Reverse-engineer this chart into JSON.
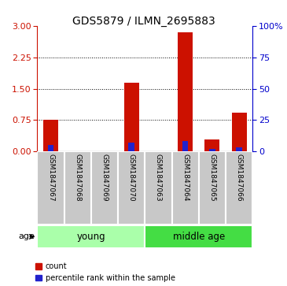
{
  "title": "GDS5879 / ILMN_2695883",
  "samples": [
    "GSM1847067",
    "GSM1847068",
    "GSM1847069",
    "GSM1847070",
    "GSM1847063",
    "GSM1847064",
    "GSM1847065",
    "GSM1847066"
  ],
  "count_values": [
    0.75,
    0.0,
    0.0,
    1.65,
    0.0,
    2.85,
    0.28,
    0.92
  ],
  "percentile_values": [
    5.0,
    0.0,
    0.0,
    7.0,
    0.0,
    8.5,
    2.0,
    3.5
  ],
  "ylim_left": [
    0,
    3
  ],
  "ylim_right": [
    0,
    100
  ],
  "yticks_left": [
    0,
    0.75,
    1.5,
    2.25,
    3
  ],
  "yticks_right": [
    0,
    25,
    50,
    75,
    100
  ],
  "bar_color_count": "#CC1100",
  "bar_color_percentile": "#2222CC",
  "sample_bg_color": "#C8C8C8",
  "young_color": "#AAFFAA",
  "middle_age_color": "#44DD44",
  "group_defs": [
    [
      0,
      3,
      "young"
    ],
    [
      4,
      7,
      "middle age"
    ]
  ],
  "age_label": "age",
  "legend_count": "count",
  "legend_percentile": "percentile rank within the sample",
  "title_fontsize": 10,
  "tick_fontsize": 8,
  "sample_fontsize": 6.5,
  "group_fontsize": 8.5
}
